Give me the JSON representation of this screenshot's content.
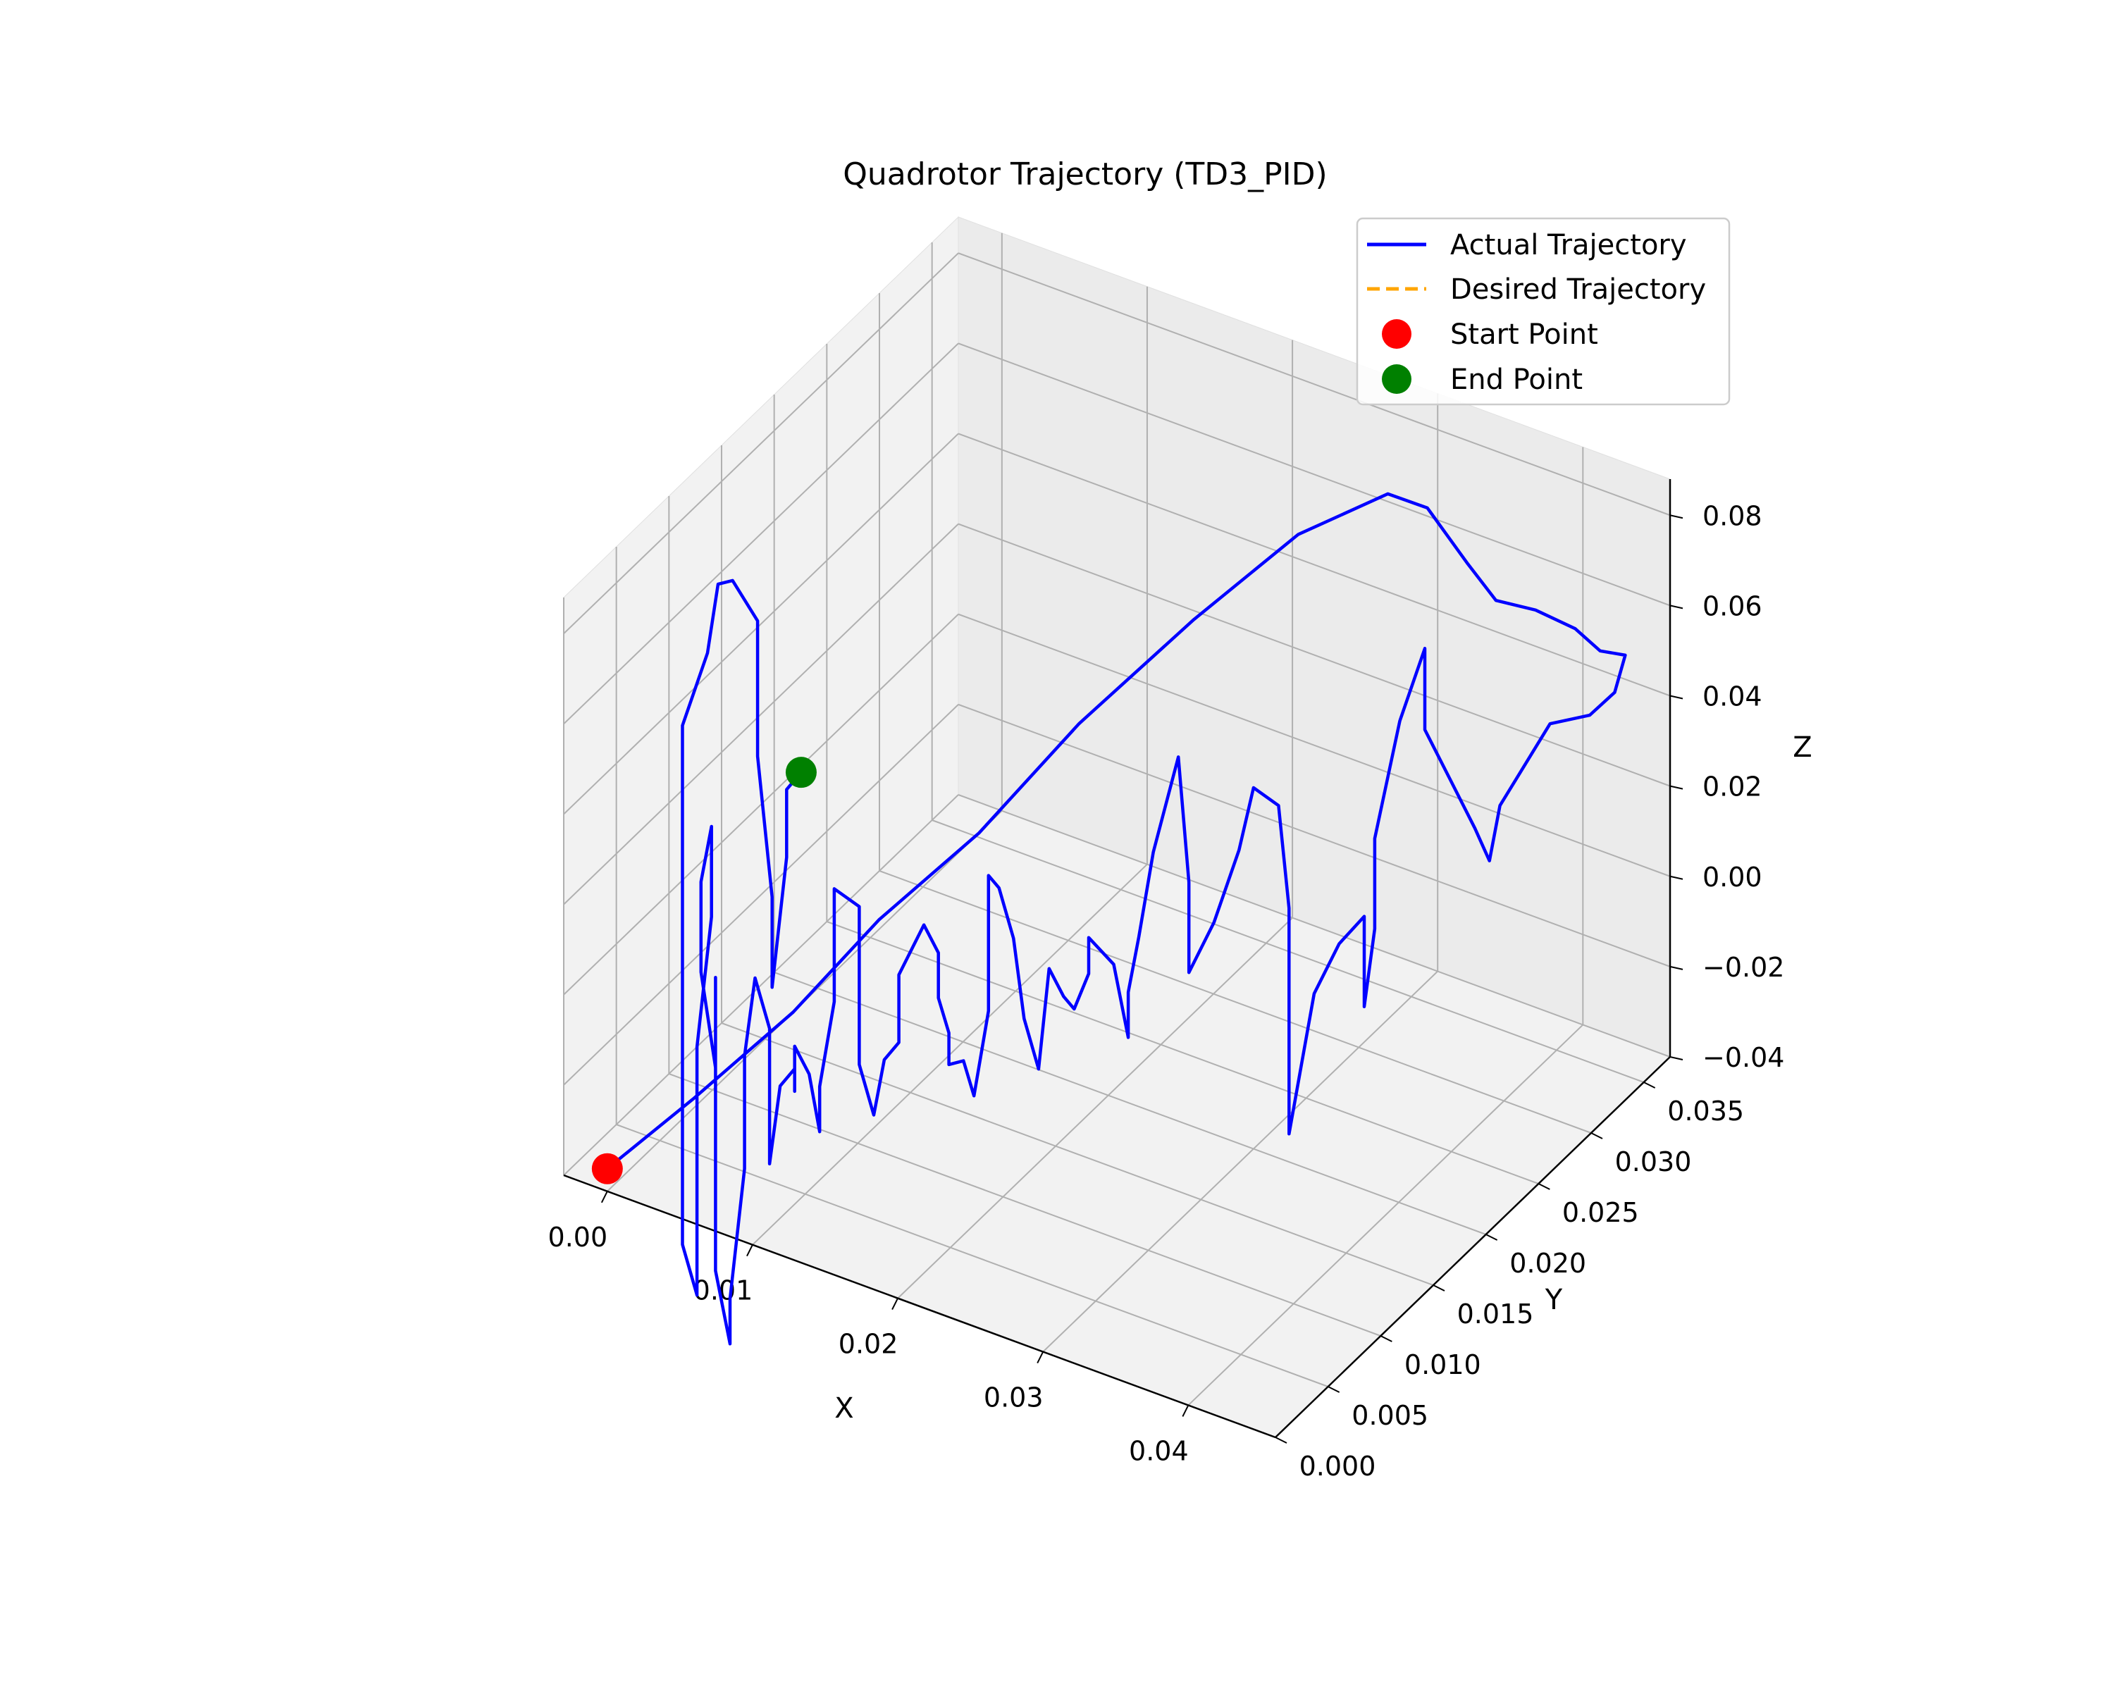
{
  "chart_data": {
    "type": "line3d",
    "title": "Quadrotor Trajectory (TD3_PID)",
    "xlabel": "X",
    "ylabel": "Y",
    "zlabel": "Z",
    "xlim": [
      -0.003,
      0.046
    ],
    "ylim": [
      0.0,
      0.0375
    ],
    "zlim": [
      -0.04,
      0.088
    ],
    "x_ticks": [
      "0.00",
      "0.01",
      "0.02",
      "0.03",
      "0.04"
    ],
    "y_ticks": [
      "0.000",
      "0.005",
      "0.010",
      "0.015",
      "0.020",
      "0.025",
      "0.030",
      "0.035"
    ],
    "z_ticks": [
      "−0.04",
      "−0.02",
      "0.00",
      "0.02",
      "0.04",
      "0.06",
      "0.08"
    ],
    "legend": {
      "placement": "top-right",
      "entries": [
        {
          "label": "Actual Trajectory",
          "style": "solid-line",
          "color": "#0000ff"
        },
        {
          "label": "Desired Trajectory",
          "style": "dashed-line",
          "color": "#ffa500"
        },
        {
          "label": "Start Point",
          "style": "marker",
          "color": "#ff0000"
        },
        {
          "label": "End Point",
          "style": "marker",
          "color": "#008000"
        }
      ]
    },
    "series": [
      {
        "name": "Actual Trajectory",
        "color": "#0000ff",
        "points": [
          [
            0.0,
            0.0,
            -0.035
          ],
          [
            0.003,
            0.004,
            -0.025
          ],
          [
            0.007,
            0.008,
            -0.01
          ],
          [
            0.01,
            0.012,
            0.005
          ],
          [
            0.014,
            0.016,
            0.02
          ],
          [
            0.018,
            0.02,
            0.04
          ],
          [
            0.023,
            0.024,
            0.06
          ],
          [
            0.028,
            0.027,
            0.078
          ],
          [
            0.032,
            0.03,
            0.085
          ],
          [
            0.034,
            0.031,
            0.082
          ],
          [
            0.036,
            0.032,
            0.07
          ],
          [
            0.038,
            0.032,
            0.064
          ],
          [
            0.04,
            0.033,
            0.062
          ],
          [
            0.042,
            0.034,
            0.058
          ],
          [
            0.043,
            0.035,
            0.052
          ],
          [
            0.044,
            0.036,
            0.05
          ],
          [
            0.044,
            0.035,
            0.044
          ],
          [
            0.043,
            0.034,
            0.04
          ],
          [
            0.041,
            0.033,
            0.038
          ],
          [
            0.04,
            0.032,
            0.03
          ],
          [
            0.039,
            0.031,
            0.022
          ],
          [
            0.039,
            0.03,
            0.012
          ],
          [
            0.038,
            0.03,
            0.018
          ],
          [
            0.037,
            0.029,
            0.03
          ],
          [
            0.036,
            0.028,
            0.042
          ],
          [
            0.036,
            0.028,
            0.06
          ],
          [
            0.035,
            0.027,
            0.045
          ],
          [
            0.034,
            0.026,
            0.02
          ],
          [
            0.034,
            0.026,
            0.0
          ],
          [
            0.034,
            0.025,
            -0.015
          ],
          [
            0.034,
            0.025,
            0.005
          ],
          [
            0.033,
            0.024,
            0.0
          ],
          [
            0.032,
            0.023,
            -0.01
          ],
          [
            0.031,
            0.022,
            -0.04
          ],
          [
            0.031,
            0.022,
            -0.01
          ],
          [
            0.031,
            0.022,
            0.01
          ],
          [
            0.031,
            0.021,
            0.035
          ],
          [
            0.03,
            0.02,
            0.04
          ],
          [
            0.029,
            0.02,
            0.025
          ],
          [
            0.028,
            0.019,
            0.01
          ],
          [
            0.027,
            0.018,
            0.0
          ],
          [
            0.027,
            0.018,
            0.02
          ],
          [
            0.027,
            0.017,
            0.05
          ],
          [
            0.026,
            0.016,
            0.03
          ],
          [
            0.025,
            0.016,
            0.01
          ],
          [
            0.025,
            0.015,
            0.0
          ],
          [
            0.025,
            0.015,
            -0.01
          ],
          [
            0.024,
            0.015,
            0.005
          ],
          [
            0.023,
            0.014,
            0.012
          ],
          [
            0.023,
            0.014,
            0.004
          ],
          [
            0.022,
            0.014,
            -0.005
          ],
          [
            0.022,
            0.013,
            0.0
          ],
          [
            0.021,
            0.013,
            0.005
          ],
          [
            0.021,
            0.012,
            -0.015
          ],
          [
            0.02,
            0.012,
            -0.005
          ],
          [
            0.02,
            0.011,
            0.015
          ],
          [
            0.019,
            0.011,
            0.025
          ],
          [
            0.019,
            0.01,
            0.03
          ],
          [
            0.019,
            0.01,
            0.0
          ],
          [
            0.018,
            0.01,
            -0.02
          ],
          [
            0.018,
            0.009,
            -0.01
          ],
          [
            0.017,
            0.009,
            -0.012
          ],
          [
            0.017,
            0.009,
            -0.005
          ],
          [
            0.017,
            0.008,
            0.005
          ],
          [
            0.017,
            0.008,
            0.015
          ],
          [
            0.016,
            0.008,
            0.02
          ],
          [
            0.015,
            0.007,
            0.01
          ],
          [
            0.015,
            0.007,
            -0.005
          ],
          [
            0.014,
            0.007,
            -0.01
          ],
          [
            0.014,
            0.006,
            -0.02
          ],
          [
            0.013,
            0.006,
            -0.01
          ],
          [
            0.013,
            0.006,
            0.0
          ],
          [
            0.013,
            0.006,
            0.025
          ],
          [
            0.012,
            0.005,
            0.03
          ],
          [
            0.012,
            0.005,
            0.005
          ],
          [
            0.011,
            0.005,
            -0.015
          ],
          [
            0.011,
            0.005,
            -0.025
          ],
          [
            0.011,
            0.004,
            -0.01
          ],
          [
            0.01,
            0.004,
            -0.005
          ],
          [
            0.01,
            0.004,
            -0.015
          ],
          [
            0.01,
            0.004,
            -0.01
          ],
          [
            0.009,
            0.004,
            -0.015
          ],
          [
            0.009,
            0.003,
            -0.03
          ],
          [
            0.009,
            0.003,
            -0.02
          ],
          [
            0.009,
            0.003,
            -0.012
          ],
          [
            0.009,
            0.003,
            0.0
          ],
          [
            0.008,
            0.003,
            0.01
          ],
          [
            0.008,
            0.002,
            -0.005
          ],
          [
            0.008,
            0.002,
            -0.03
          ],
          [
            0.007,
            0.002,
            -0.06
          ],
          [
            0.007,
            0.002,
            -0.07
          ],
          [
            0.006,
            0.002,
            -0.055
          ],
          [
            0.006,
            0.002,
            -0.03
          ],
          [
            0.006,
            0.002,
            -0.01
          ],
          [
            0.006,
            0.002,
            0.01
          ],
          [
            0.006,
            0.002,
            -0.01
          ],
          [
            0.005,
            0.002,
            0.01
          ],
          [
            0.005,
            0.002,
            0.03
          ],
          [
            0.005,
            0.003,
            0.04
          ],
          [
            0.005,
            0.003,
            0.02
          ],
          [
            0.004,
            0.003,
            -0.01
          ],
          [
            0.004,
            0.003,
            -0.05
          ],
          [
            0.004,
            0.003,
            -0.065
          ],
          [
            0.003,
            0.003,
            -0.055
          ],
          [
            0.003,
            0.003,
            -0.03
          ],
          [
            0.003,
            0.003,
            -0.015
          ],
          [
            0.003,
            0.003,
            0.0
          ],
          [
            0.003,
            0.003,
            0.03
          ],
          [
            0.003,
            0.003,
            0.06
          ],
          [
            0.004,
            0.004,
            0.075
          ],
          [
            0.004,
            0.005,
            0.088
          ],
          [
            0.005,
            0.005,
            0.09
          ],
          [
            0.006,
            0.006,
            0.08
          ],
          [
            0.006,
            0.006,
            0.05
          ],
          [
            0.007,
            0.006,
            0.02
          ],
          [
            0.007,
            0.006,
            0.0
          ],
          [
            0.008,
            0.006,
            0.03
          ],
          [
            0.008,
            0.006,
            0.045
          ],
          [
            0.009,
            0.006,
            0.05
          ]
        ]
      }
    ],
    "markers": [
      {
        "name": "Start Point",
        "color": "#ff0000",
        "point": [
          0.0,
          0.0,
          -0.035
        ]
      },
      {
        "name": "End Point",
        "color": "#008000",
        "point": [
          0.009,
          0.006,
          0.05
        ]
      }
    ]
  }
}
